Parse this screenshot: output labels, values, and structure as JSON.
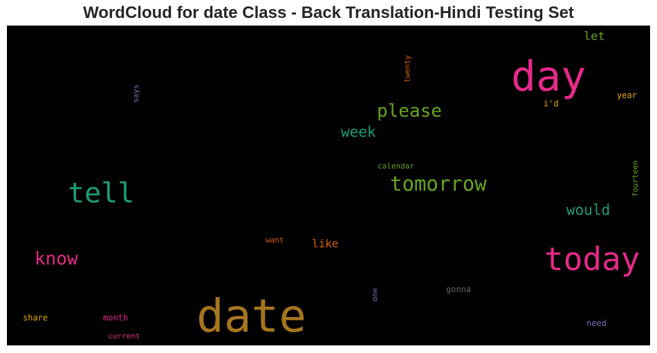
{
  "title": "WordCloud for date Class - Back Translation-Hindi Testing Set",
  "words": {
    "date": {
      "text": "date",
      "color": "#a6761d"
    },
    "day": {
      "text": "day",
      "color": "#e7298a"
    },
    "today": {
      "text": "today",
      "color": "#e7298a"
    },
    "tell": {
      "text": "tell",
      "color": "#1b9e77"
    },
    "tomorrow": {
      "text": "tomorrow",
      "color": "#66a61e"
    },
    "please": {
      "text": "please",
      "color": "#66a61e"
    },
    "know": {
      "text": "know",
      "color": "#e7298a"
    },
    "week": {
      "text": "week",
      "color": "#1b9e77"
    },
    "would": {
      "text": "would",
      "color": "#1b9e77"
    },
    "like": {
      "text": "like",
      "color": "#d95f02"
    },
    "let": {
      "text": "let",
      "color": "#66a61e"
    },
    "year": {
      "text": "year",
      "color": "#e6ab02"
    },
    "id": {
      "text": "i'd",
      "color": "#e6ab02"
    },
    "twenty": {
      "text": "twenty",
      "color": "#d95f02"
    },
    "says": {
      "text": "says",
      "color": "#7570b3"
    },
    "fourteen": {
      "text": "fourteen",
      "color": "#66a61e"
    },
    "calendar": {
      "text": "calendar",
      "color": "#66a61e"
    },
    "want": {
      "text": "want",
      "color": "#d95f02"
    },
    "one": {
      "text": "one",
      "color": "#7570b3"
    },
    "gonna": {
      "text": "gonna",
      "color": "#666666"
    },
    "share": {
      "text": "share",
      "color": "#e6ab02"
    },
    "month": {
      "text": "month",
      "color": "#e7298a"
    },
    "current": {
      "text": "current",
      "color": "#e7298a"
    },
    "need": {
      "text": "need",
      "color": "#7570b3"
    }
  }
}
